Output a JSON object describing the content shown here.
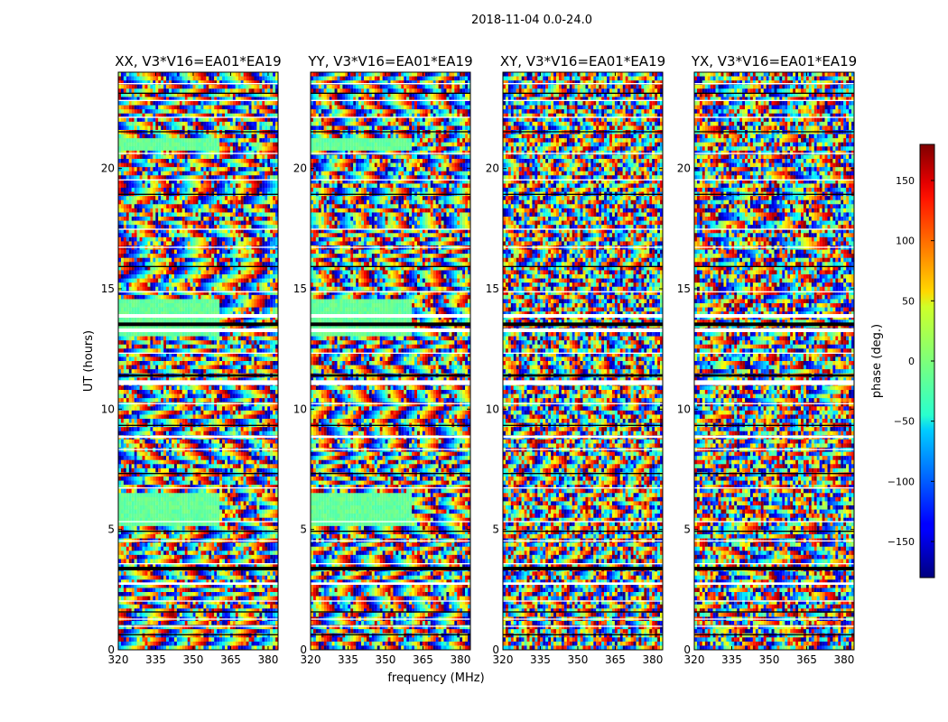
{
  "figure_title": "2018-11-04 0.0-24.0",
  "chart_data": {
    "type": "heatmap",
    "figure_title": "2018-11-04 0.0-24.0",
    "xlabel": "frequency (MHz)",
    "ylabel": "UT (hours)",
    "xlim": [
      320,
      384
    ],
    "ylim": [
      0,
      24
    ],
    "xticks": [
      320,
      335,
      350,
      365,
      380
    ],
    "yticks": [
      0,
      5,
      10,
      15,
      20
    ],
    "panels": [
      {
        "title": "XX, V3*V16=EA01*EA19"
      },
      {
        "title": "YY, V3*V16=EA01*EA19"
      },
      {
        "title": "XY, V3*V16=EA01*EA19"
      },
      {
        "title": "YX, V3*V16=EA01*EA19"
      }
    ],
    "colorbar": {
      "label": "phase (deg.)",
      "range": [
        -180,
        180
      ],
      "ticks": [
        -150,
        -100,
        -50,
        0,
        50,
        100,
        150
      ],
      "tick_labels": [
        "−150",
        "−100",
        "−50",
        "0",
        "50",
        "100",
        "150"
      ],
      "colormap": "jet"
    },
    "flagged_ut_bands": [
      [
        0.6,
        0.65
      ],
      [
        0.95,
        1.0
      ],
      [
        1.25,
        1.3
      ],
      [
        1.55,
        1.6
      ],
      [
        2.0,
        2.05
      ],
      [
        2.7,
        2.8
      ],
      [
        3.3,
        3.45
      ],
      [
        3.55,
        3.6
      ],
      [
        4.5,
        4.55
      ],
      [
        4.9,
        4.95
      ],
      [
        5.3,
        5.35
      ],
      [
        6.7,
        6.75
      ],
      [
        7.3,
        7.35
      ],
      [
        8.3,
        8.35
      ],
      [
        8.8,
        8.9
      ],
      [
        9.3,
        9.35
      ],
      [
        10.2,
        10.25
      ],
      [
        11.0,
        11.2
      ],
      [
        11.35,
        11.45
      ],
      [
        12.3,
        12.35
      ],
      [
        13.2,
        13.35
      ],
      [
        13.45,
        13.6
      ],
      [
        13.8,
        13.95
      ],
      [
        14.85,
        14.9
      ],
      [
        15.9,
        15.95
      ],
      [
        16.7,
        16.75
      ],
      [
        17.45,
        17.5
      ],
      [
        18.9,
        18.95
      ],
      [
        19.5,
        19.55
      ],
      [
        20.6,
        20.65
      ],
      [
        21.5,
        21.55
      ],
      [
        22.1,
        22.15
      ],
      [
        22.8,
        22.85
      ],
      [
        23.1,
        23.15
      ],
      [
        23.5,
        23.55
      ]
    ]
  }
}
